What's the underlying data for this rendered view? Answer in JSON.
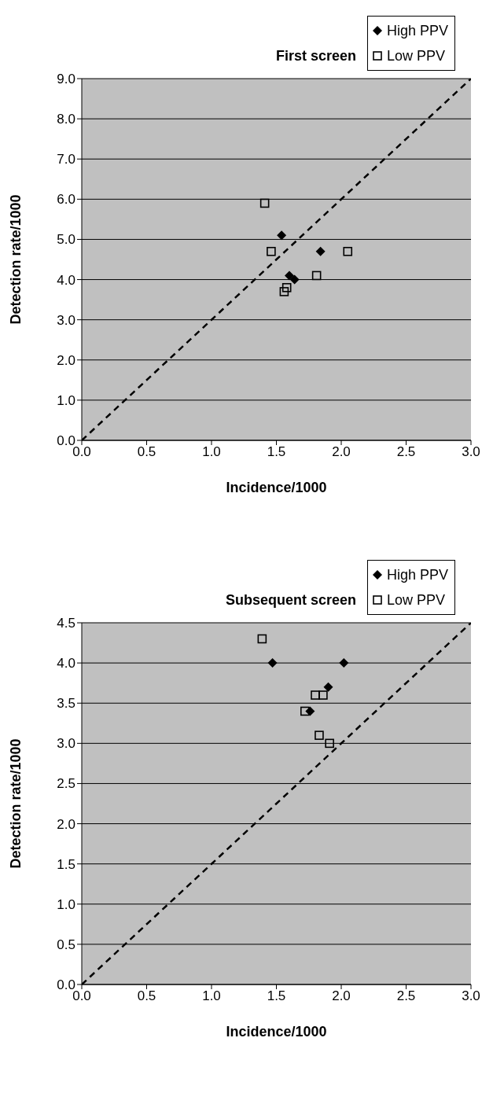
{
  "chart_data": [
    {
      "type": "scatter",
      "title": "First screen",
      "xlabel": "Incidence/1000",
      "ylabel": "Detection rate/1000",
      "xlim": [
        0,
        3
      ],
      "xticks": [
        {
          "value": 0,
          "label": "0.0"
        },
        0.5,
        {
          "value": 1,
          "label": "1.0"
        },
        1.5,
        {
          "value": 2,
          "label": "2.0"
        },
        2.5,
        {
          "value": 3,
          "label": "3.0"
        }
      ],
      "ylim": [
        0,
        9
      ],
      "yticks": [
        {
          "value": 0,
          "label": "0.0"
        },
        {
          "value": 1,
          "label": "1.0"
        },
        {
          "value": 2,
          "label": "2.0"
        },
        {
          "value": 3,
          "label": "3.0"
        },
        {
          "value": 4,
          "label": "4.0"
        },
        {
          "value": 5,
          "label": "5.0"
        },
        {
          "value": 6,
          "label": "6.0"
        },
        {
          "value": 7,
          "label": "7.0"
        },
        {
          "value": 8,
          "label": "8.0"
        },
        {
          "value": 9,
          "label": "9.0"
        }
      ],
      "grid": "y",
      "legend": "top right",
      "series": [
        {
          "name": "High PPV",
          "marker": "diamond",
          "color": "#000000",
          "x": [
            1.54,
            1.84,
            1.6,
            1.64
          ],
          "values": [
            5.1,
            4.7,
            4.1,
            4.0
          ]
        },
        {
          "name": "Low PPV",
          "marker": "square",
          "color": "#000000",
          "x": [
            1.41,
            1.46,
            2.05,
            1.81,
            1.58,
            1.56
          ],
          "values": [
            5.9,
            4.7,
            4.7,
            4.1,
            3.8,
            3.7
          ]
        },
        {
          "type": "line",
          "marker": "none",
          "line_style": "dashed",
          "color": "#000000",
          "x": [
            0,
            3
          ],
          "values": [
            0,
            9
          ]
        }
      ]
    },
    {
      "type": "scatter",
      "title": "Subsequent screen",
      "xlabel": "Incidence/1000",
      "ylabel": "Detection rate/1000",
      "xlim": [
        0,
        3
      ],
      "xticks": [
        {
          "value": 0,
          "label": "0.0"
        },
        0.5,
        {
          "value": 1,
          "label": "1.0"
        },
        1.5,
        {
          "value": 2,
          "label": "2.0"
        },
        2.5,
        {
          "value": 3,
          "label": "3.0"
        }
      ],
      "ylim": [
        0,
        4.5
      ],
      "yticks": [
        {
          "value": 0,
          "label": "0.0"
        },
        0.5,
        {
          "value": 1,
          "label": "1.0"
        },
        1.5,
        {
          "value": 2,
          "label": "2.0"
        },
        2.5,
        {
          "value": 3,
          "label": "3.0"
        },
        3.5,
        {
          "value": 4,
          "label": "4.0"
        },
        4.5
      ],
      "grid": "y",
      "legend": "top right",
      "series": [
        {
          "name": "High PPV",
          "marker": "diamond",
          "color": "#000000",
          "x": [
            1.47,
            2.02,
            1.9,
            1.76
          ],
          "values": [
            4.0,
            4.0,
            3.7,
            3.4
          ]
        },
        {
          "name": "Low PPV",
          "marker": "square",
          "color": "#000000",
          "x": [
            1.39,
            1.8,
            1.86,
            1.72,
            1.83,
            1.91
          ],
          "values": [
            4.3,
            3.6,
            3.6,
            3.4,
            3.1,
            3.0
          ]
        },
        {
          "type": "line",
          "marker": "none",
          "line_style": "dashed",
          "color": "#000000",
          "x": [
            0,
            3
          ],
          "values": [
            0,
            4.5
          ]
        }
      ]
    }
  ]
}
